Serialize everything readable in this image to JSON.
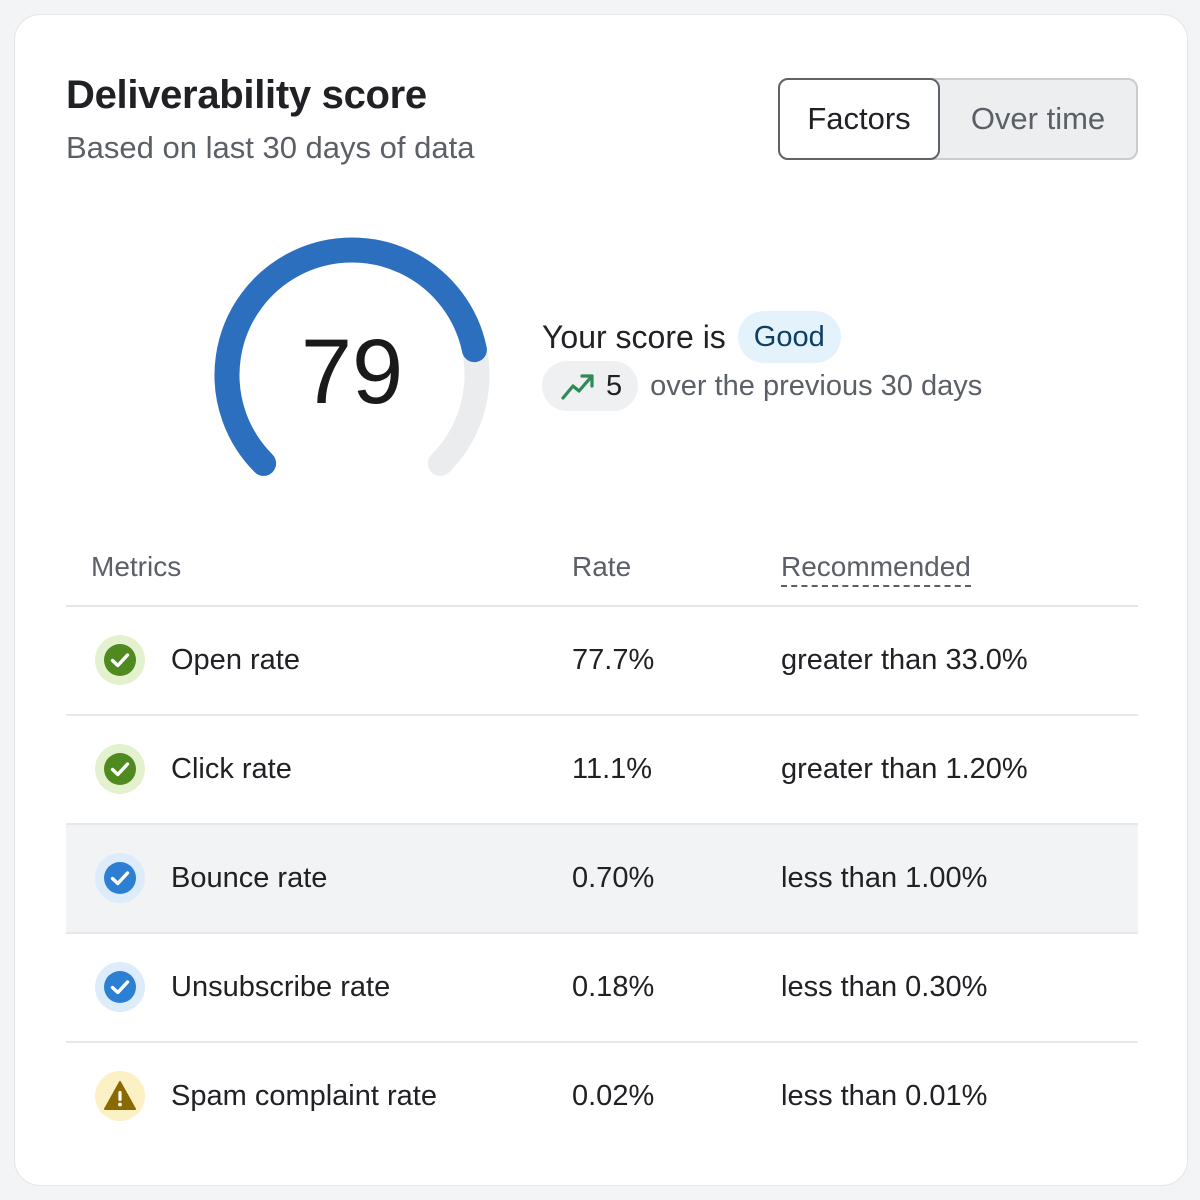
{
  "header": {
    "title": "Deliverability score",
    "subtitle": "Based on last 30 days of data"
  },
  "view_toggle": {
    "options": [
      "Factors",
      "Over time"
    ],
    "selected": "Factors"
  },
  "score": {
    "value": "79",
    "max": 100,
    "label": "Your score is",
    "rating": "Good",
    "change": "5",
    "change_direction": "up",
    "change_icon": "trending-up-icon",
    "change_text": "over the previous 30 days"
  },
  "metrics_table": {
    "headers": [
      "Metrics",
      "Rate",
      "Recommended"
    ],
    "rows": [
      {
        "metric": "Open rate",
        "rate": "77.7%",
        "recommended": "greater than 33.0%",
        "status": "good",
        "icon": "check-circle-icon",
        "highlighted": false
      },
      {
        "metric": "Click rate",
        "rate": "11.1%",
        "recommended": "greater than 1.20%",
        "status": "good",
        "icon": "check-circle-icon",
        "highlighted": false
      },
      {
        "metric": "Bounce rate",
        "rate": "0.70%",
        "recommended": "less than 1.00%",
        "status": "ok",
        "icon": "check-circle-icon",
        "highlighted": true
      },
      {
        "metric": "Unsubscribe rate",
        "rate": "0.18%",
        "recommended": "less than 0.30%",
        "status": "ok",
        "icon": "check-circle-icon",
        "highlighted": false
      },
      {
        "metric": "Spam complaint rate",
        "rate": "0.02%",
        "recommended": "less than 0.01%",
        "status": "warning",
        "icon": "warning-icon",
        "highlighted": false
      }
    ]
  },
  "colors": {
    "gauge_fill": "#2c6fbe",
    "gauge_track": "#ebecee",
    "good": "#4e8a1f",
    "good_ring": "#e3f1cf",
    "ok": "#2d7fd4",
    "ok_ring": "#dcecfa",
    "warning": "#8a6a00",
    "warning_ring": "#fbf1c4",
    "trend": "#2e8a57"
  }
}
